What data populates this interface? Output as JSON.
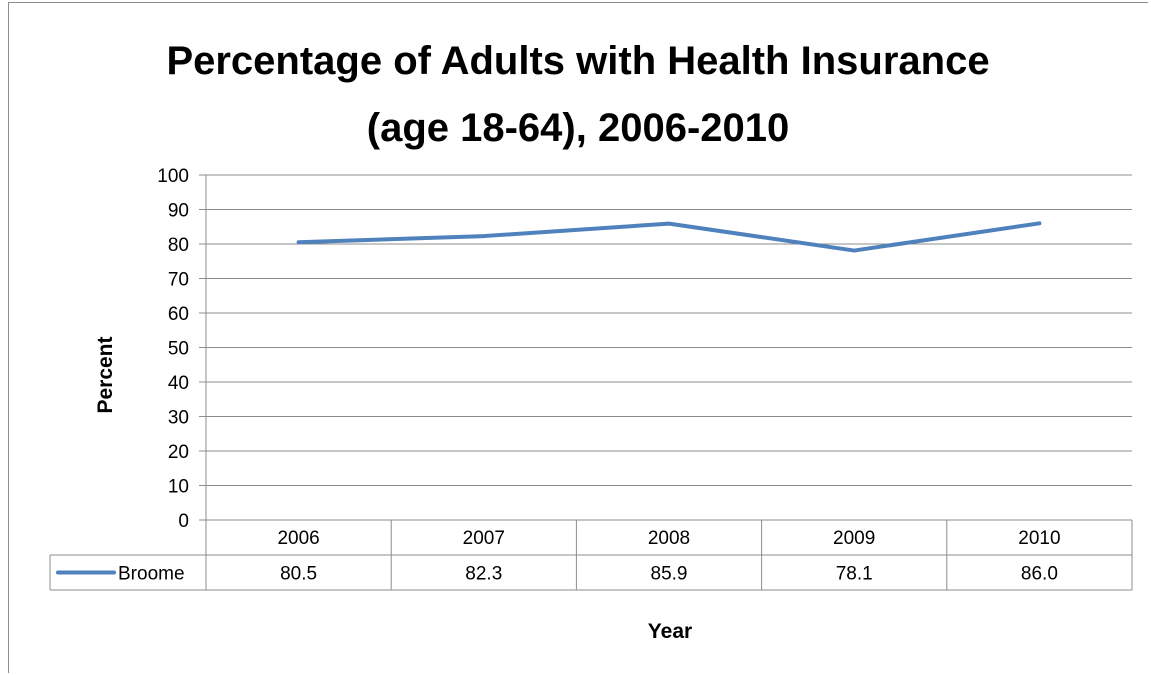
{
  "chart_data": {
    "type": "line",
    "title_lines": [
      "Percentage of Adults with Health Insurance",
      "(age 18-64), 2006-2010"
    ],
    "xlabel": "Year",
    "ylabel": "Percent",
    "categories": [
      "2006",
      "2007",
      "2008",
      "2009",
      "2010"
    ],
    "ylim": [
      0,
      100
    ],
    "yticks": [
      0,
      10,
      20,
      30,
      40,
      50,
      60,
      70,
      80,
      90,
      100
    ],
    "grid": true,
    "data_table": true,
    "series": [
      {
        "name": "Broome",
        "values": [
          80.5,
          82.3,
          85.9,
          78.1,
          86.0
        ],
        "value_labels": [
          "80.5",
          "82.3",
          "85.9",
          "78.1",
          "86.0"
        ],
        "color": "#4f81bd"
      }
    ]
  }
}
